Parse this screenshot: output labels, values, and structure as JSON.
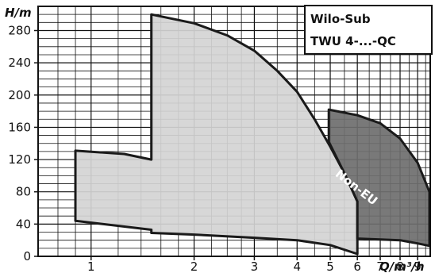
{
  "chart_data": {
    "type": "area",
    "title_box": [
      "Wilo-Sub",
      "TWU 4-...-QC"
    ],
    "ylabel": "H/m",
    "xlabel": "Q/m³/h",
    "x_scale": "log",
    "xlim": [
      0.7,
      9.8
    ],
    "ylim": [
      0,
      310
    ],
    "grid": true,
    "y_ticks": [
      0,
      40,
      80,
      120,
      160,
      200,
      240,
      280
    ],
    "x_ticks": [
      1,
      2,
      3,
      4,
      5,
      6,
      7,
      8,
      9
    ],
    "regions": [
      {
        "name": "",
        "color": "#d4d4d4",
        "points": [
          [
            0.9,
            131
          ],
          [
            1.25,
            127
          ],
          [
            1.5,
            120
          ],
          [
            1.5,
            300
          ],
          [
            2.0,
            289
          ],
          [
            2.5,
            274
          ],
          [
            3.0,
            255
          ],
          [
            3.5,
            230
          ],
          [
            4.0,
            204
          ],
          [
            4.5,
            170
          ],
          [
            5.0,
            136
          ],
          [
            5.5,
            103
          ],
          [
            6.0,
            68
          ],
          [
            6.0,
            3
          ],
          [
            5.0,
            14
          ],
          [
            4.0,
            20
          ],
          [
            3.0,
            23
          ],
          [
            2.0,
            27
          ],
          [
            1.5,
            29
          ],
          [
            1.5,
            33
          ],
          [
            0.9,
            44
          ]
        ]
      },
      {
        "name": "Non-EU",
        "color": "#6e6e6e",
        "points": [
          [
            4.95,
            182
          ],
          [
            6.0,
            175
          ],
          [
            7.0,
            165
          ],
          [
            8.0,
            146
          ],
          [
            9.0,
            116
          ],
          [
            9.75,
            80
          ],
          [
            9.75,
            13
          ],
          [
            9.0,
            16
          ],
          [
            8.0,
            20
          ],
          [
            7.0,
            21
          ],
          [
            6.0,
            22
          ],
          [
            6.0,
            68
          ],
          [
            5.5,
            103
          ],
          [
            4.95,
            142
          ]
        ]
      }
    ],
    "annotations": [
      "Non-EU"
    ]
  },
  "colors": {
    "grid": "#111111",
    "axis": "#111111",
    "region_light": "#d4d4d4",
    "region_dark": "#6e6e6e",
    "outline": "#1a1a1a"
  }
}
